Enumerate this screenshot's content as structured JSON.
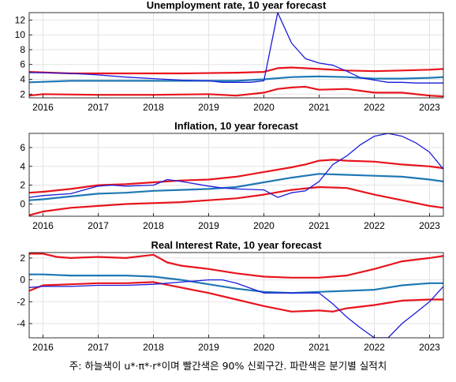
{
  "chart_data": [
    {
      "type": "line",
      "title": "Unemployment rate, 10 year forecast",
      "xlim": [
        2015.75,
        2023.25
      ],
      "ylim": [
        1.5,
        13
      ],
      "yticks": [
        2,
        4,
        6,
        8,
        10,
        12
      ],
      "xticks": [
        2016,
        2017,
        2018,
        2019,
        2020,
        2021,
        2022,
        2023
      ],
      "grid": true,
      "series": [
        {
          "role": "upper",
          "color": "#e8141c",
          "x": [
            2015.75,
            2016.5,
            2017.5,
            2018.5,
            2019.5,
            2020,
            2020.25,
            2020.5,
            2021,
            2021.5,
            2022,
            2022.5,
            2023,
            2023.25
          ],
          "y": [
            5.0,
            4.8,
            4.8,
            4.8,
            4.9,
            5.0,
            5.5,
            5.6,
            5.4,
            5.2,
            5.1,
            5.2,
            5.3,
            5.4
          ]
        },
        {
          "role": "median",
          "color": "#1f78b4",
          "x": [
            2015.75,
            2016.5,
            2017.5,
            2018.5,
            2019.5,
            2020,
            2020.5,
            2021,
            2021.5,
            2022,
            2022.5,
            2023,
            2023.25
          ],
          "y": [
            3.6,
            3.8,
            3.8,
            3.8,
            3.8,
            4.0,
            4.3,
            4.4,
            4.3,
            4.1,
            4.1,
            4.2,
            4.3
          ]
        },
        {
          "role": "lower",
          "color": "#e8141c",
          "x": [
            2015.75,
            2016,
            2017,
            2018,
            2019,
            2019.5,
            2020,
            2020.25,
            2020.5,
            2020.75,
            2021,
            2021.5,
            2022,
            2022.5,
            2023,
            2023.25
          ],
          "y": [
            1.8,
            2.0,
            1.9,
            1.9,
            2.0,
            1.8,
            2.2,
            2.7,
            2.9,
            3.0,
            2.6,
            2.7,
            2.2,
            2.2,
            1.8,
            1.7
          ]
        },
        {
          "role": "actual",
          "color": "#1a1adc",
          "x": [
            2015.75,
            2016,
            2016.5,
            2017,
            2017.5,
            2018,
            2018.5,
            2019,
            2019.25,
            2019.5,
            2019.75,
            2020,
            2020.25,
            2020.5,
            2020.75,
            2021,
            2021.25,
            2021.5,
            2021.75,
            2022,
            2022.25,
            2022.5,
            2022.75,
            2023,
            2023.25
          ],
          "y": [
            4.9,
            4.9,
            4.8,
            4.6,
            4.3,
            4.1,
            3.9,
            3.8,
            3.6,
            3.6,
            3.6,
            3.8,
            13.0,
            8.9,
            6.8,
            6.2,
            5.9,
            5.1,
            4.2,
            3.9,
            3.6,
            3.6,
            3.5,
            3.5,
            3.5
          ]
        }
      ]
    },
    {
      "type": "line",
      "title": "Inflation, 10 year forecast",
      "xlim": [
        2015.75,
        2023.25
      ],
      "ylim": [
        -1.3,
        7.5
      ],
      "yticks": [
        0,
        2,
        4,
        6
      ],
      "xticks": [
        2016,
        2017,
        2018,
        2019,
        2020,
        2021,
        2022,
        2023
      ],
      "grid": true,
      "series": [
        {
          "role": "upper",
          "color": "#e8141c",
          "x": [
            2015.75,
            2016,
            2016.5,
            2017,
            2017.5,
            2018,
            2018.5,
            2019,
            2019.5,
            2020,
            2020.5,
            2020.75,
            2021,
            2021.25,
            2021.5,
            2022,
            2022.5,
            2023,
            2023.25
          ],
          "y": [
            1.2,
            1.3,
            1.6,
            2.0,
            2.1,
            2.3,
            2.5,
            2.6,
            2.9,
            3.4,
            3.9,
            4.2,
            4.6,
            4.7,
            4.6,
            4.5,
            4.2,
            4.0,
            3.8
          ]
        },
        {
          "role": "median",
          "color": "#1f78b4",
          "x": [
            2015.75,
            2016,
            2016.5,
            2017,
            2017.5,
            2018,
            2018.5,
            2019,
            2019.5,
            2020,
            2020.5,
            2021,
            2021.5,
            2022,
            2022.5,
            2023,
            2023.25
          ],
          "y": [
            0.4,
            0.5,
            0.8,
            1.1,
            1.2,
            1.4,
            1.5,
            1.6,
            1.8,
            2.3,
            2.8,
            3.2,
            3.1,
            3.0,
            2.9,
            2.6,
            2.4
          ]
        },
        {
          "role": "lower",
          "color": "#e8141c",
          "x": [
            2015.75,
            2016,
            2016.5,
            2017,
            2017.5,
            2018,
            2018.5,
            2019,
            2019.5,
            2020,
            2020.5,
            2021,
            2021.5,
            2022,
            2022.5,
            2023,
            2023.25
          ],
          "y": [
            -1.2,
            -0.8,
            -0.4,
            -0.2,
            0.0,
            0.1,
            0.2,
            0.4,
            0.6,
            1.0,
            1.5,
            1.8,
            1.7,
            1.0,
            0.4,
            -0.2,
            -0.4
          ]
        },
        {
          "role": "actual",
          "color": "#1a1adc",
          "x": [
            2015.75,
            2016,
            2016.5,
            2017,
            2017.25,
            2017.5,
            2018,
            2018.25,
            2018.5,
            2019,
            2019.25,
            2019.5,
            2020,
            2020.25,
            2020.5,
            2020.75,
            2021,
            2021.25,
            2021.5,
            2021.75,
            2022,
            2022.25,
            2022.5,
            2022.75,
            2023,
            2023.25
          ],
          "y": [
            0.7,
            0.9,
            1.1,
            1.9,
            2.0,
            1.9,
            2.0,
            2.6,
            2.4,
            1.9,
            1.7,
            1.6,
            1.5,
            0.7,
            1.2,
            1.4,
            2.4,
            4.2,
            5.1,
            6.3,
            7.2,
            7.5,
            7.2,
            6.5,
            5.5,
            3.7
          ]
        }
      ]
    },
    {
      "type": "line",
      "title": "Real Interest Rate, 10 year forecast",
      "xlim": [
        2015.75,
        2023.25
      ],
      "ylim": [
        -5.3,
        2.5
      ],
      "yticks": [
        -4,
        -2,
        0,
        2
      ],
      "xticks": [
        2016,
        2017,
        2018,
        2019,
        2020,
        2021,
        2022,
        2023
      ],
      "grid": true,
      "series": [
        {
          "role": "upper",
          "color": "#e8141c",
          "x": [
            2015.75,
            2016,
            2016.25,
            2016.5,
            2017,
            2017.5,
            2018,
            2018.25,
            2018.5,
            2019,
            2019.5,
            2020,
            2020.5,
            2021,
            2021.5,
            2022,
            2022.5,
            2023,
            2023.25
          ],
          "y": [
            2.4,
            2.4,
            2.1,
            2.0,
            2.1,
            2.0,
            2.3,
            1.6,
            1.3,
            1.0,
            0.6,
            0.3,
            0.2,
            0.2,
            0.4,
            1.0,
            1.7,
            2.0,
            2.2
          ]
        },
        {
          "role": "median",
          "color": "#1f78b4",
          "x": [
            2015.75,
            2016,
            2016.5,
            2017,
            2017.5,
            2018,
            2018.5,
            2019,
            2019.5,
            2020,
            2020.5,
            2021,
            2021.5,
            2022,
            2022.5,
            2023,
            2023.25
          ],
          "y": [
            0.5,
            0.5,
            0.4,
            0.4,
            0.4,
            0.3,
            0.0,
            -0.4,
            -0.8,
            -1.1,
            -1.2,
            -1.1,
            -1.0,
            -0.9,
            -0.5,
            -0.3,
            -0.3
          ]
        },
        {
          "role": "lower",
          "color": "#e8141c",
          "x": [
            2015.75,
            2016,
            2016.5,
            2017,
            2017.5,
            2018,
            2018.5,
            2019,
            2019.5,
            2020,
            2020.5,
            2021,
            2021.25,
            2021.5,
            2022,
            2022.5,
            2023,
            2023.25
          ],
          "y": [
            -1.0,
            -0.5,
            -0.4,
            -0.3,
            -0.3,
            -0.2,
            -0.7,
            -1.2,
            -1.8,
            -2.4,
            -2.9,
            -2.8,
            -2.9,
            -2.6,
            -2.3,
            -1.9,
            -1.8,
            -1.8
          ]
        },
        {
          "role": "actual",
          "color": "#1a1adc",
          "x": [
            2015.75,
            2016,
            2016.5,
            2017,
            2017.5,
            2018,
            2018.5,
            2019,
            2019.25,
            2019.5,
            2020,
            2020.5,
            2021,
            2021.25,
            2021.5,
            2021.75,
            2022,
            2022.25,
            2022.5,
            2022.75,
            2023,
            2023.25
          ],
          "y": [
            -0.7,
            -0.6,
            -0.6,
            -0.5,
            -0.5,
            -0.4,
            -0.2,
            0.0,
            0.0,
            -0.3,
            -1.2,
            -1.2,
            -1.2,
            -2.2,
            -3.4,
            -4.4,
            -5.3,
            -5.3,
            -4.0,
            -3.0,
            -2.0,
            -0.6
          ]
        }
      ]
    }
  ],
  "note": "주: 하늘색이 u*·π*·r*이며 빨간색은 90% 신뢰구간. 파란색은 분기별 실적치"
}
